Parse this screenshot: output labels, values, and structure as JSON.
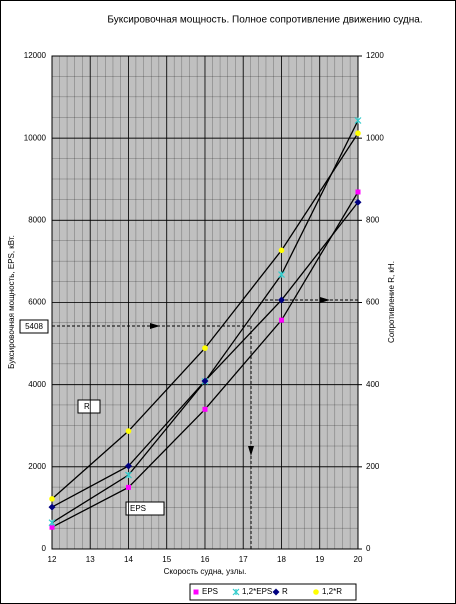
{
  "chart_data": {
    "type": "line",
    "title": "Буксировочная мощность. Полное сопротивление движению судна.",
    "x_label": "Скорость судна, узлы.",
    "y_label": "Буксировочная мощность, EPS, кВт.",
    "y2_label": "Сопротивление R, кН.",
    "x": [
      12,
      14,
      16,
      18,
      20
    ],
    "xlim": [
      12,
      20
    ],
    "xticks": [
      12,
      13,
      14,
      15,
      16,
      17,
      18,
      19,
      20
    ],
    "ylim": [
      0,
      12000
    ],
    "yticks": [
      0,
      2000,
      4000,
      6000,
      8000,
      10000,
      12000
    ],
    "y2lim": [
      0,
      1200
    ],
    "y2ticks": [
      0,
      200,
      400,
      600,
      800,
      1000,
      1200
    ],
    "grid": true,
    "series": [
      {
        "name": "EPS",
        "color": "#ff00ff",
        "values": [
          530,
          1500,
          3400,
          5570,
          8690
        ]
      },
      {
        "name": "1,2*EPS",
        "color": "#33cccc",
        "values": [
          640,
          1800,
          4080,
          6680,
          10430
        ]
      },
      {
        "name": "R",
        "color": "#000080",
        "axis": "y2",
        "values": [
          102,
          202,
          409,
          606,
          844
        ]
      },
      {
        "name": "1,2*R",
        "color": "#ffff00",
        "axis": "y2",
        "values": [
          122,
          287,
          489,
          727,
          1012
        ]
      }
    ],
    "annotations": [
      "R",
      "EPS",
      "5408"
    ]
  }
}
